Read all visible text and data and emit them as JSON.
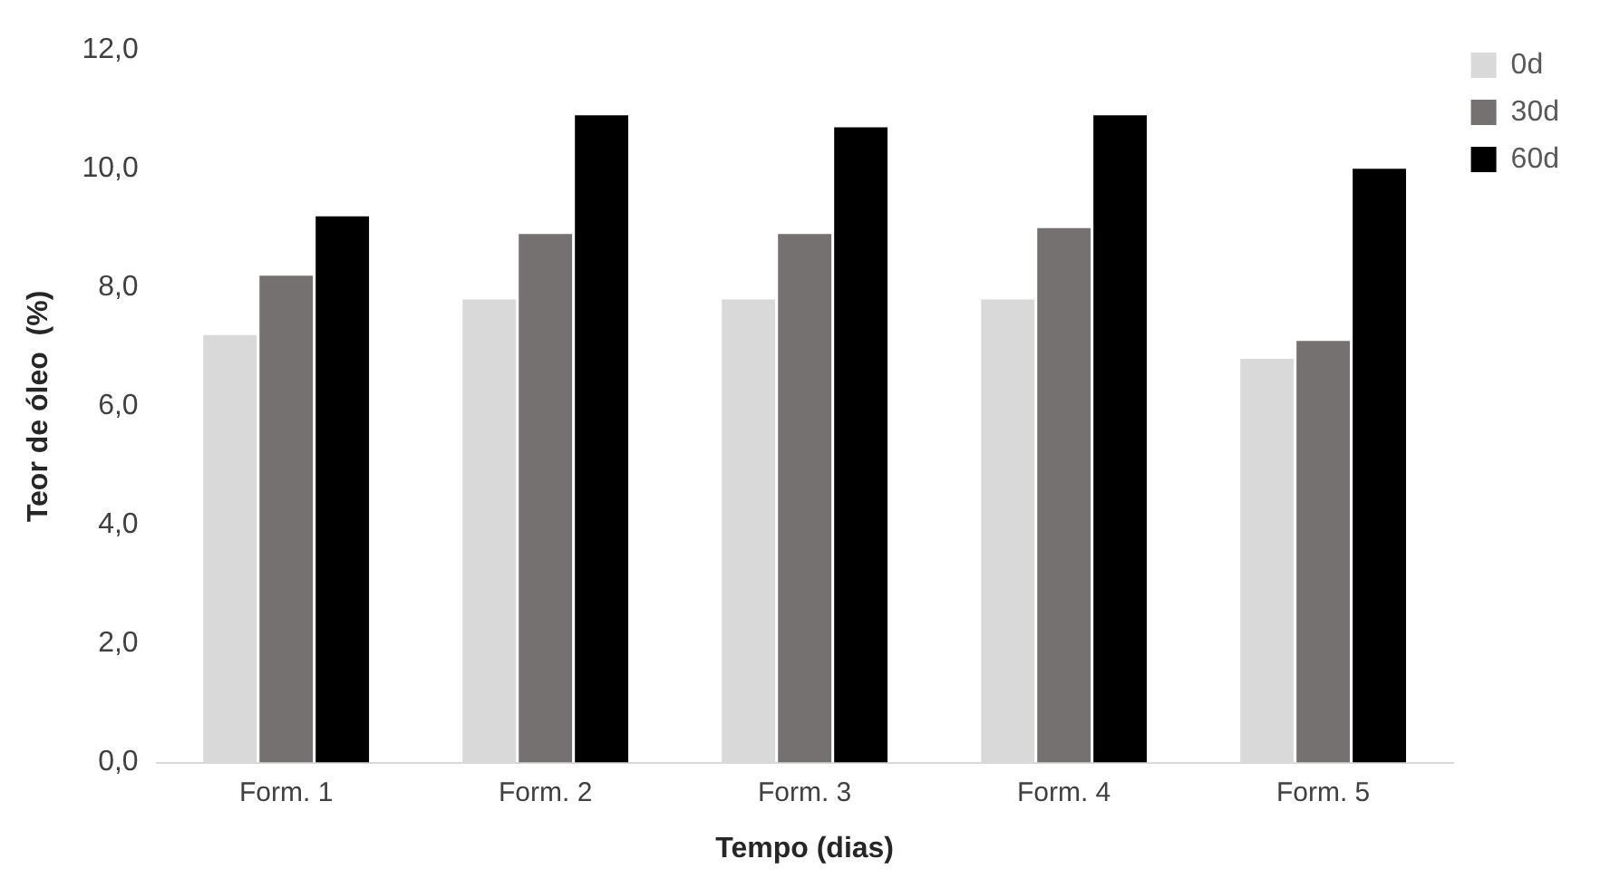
{
  "chart_data": {
    "type": "bar",
    "xlabel": "Tempo (dias)",
    "ylabel": "Teor de óleo  (%)",
    "categories": [
      "Form. 1",
      "Form. 2",
      "Form. 3",
      "Form. 4",
      "Form. 5"
    ],
    "series": [
      {
        "name": "0d",
        "color": "#d9d9d9",
        "values": [
          7.2,
          7.8,
          7.8,
          7.8,
          6.8
        ]
      },
      {
        "name": "30d",
        "color": "#767171",
        "values": [
          8.2,
          8.9,
          8.9,
          9.0,
          7.1
        ]
      },
      {
        "name": "60d",
        "color": "#000000",
        "values": [
          9.2,
          10.9,
          10.7,
          10.9,
          10.0
        ]
      }
    ],
    "ylim": [
      0,
      12
    ],
    "yticks": [
      {
        "value": 0,
        "label": "0,0"
      },
      {
        "value": 2,
        "label": "2,0"
      },
      {
        "value": 4,
        "label": "4,0"
      },
      {
        "value": 6,
        "label": "6,0"
      },
      {
        "value": 8,
        "label": "8,0"
      },
      {
        "value": 10,
        "label": "10,0"
      },
      {
        "value": 12,
        "label": "12,0"
      }
    ],
    "grid": false,
    "legend": "top right"
  }
}
